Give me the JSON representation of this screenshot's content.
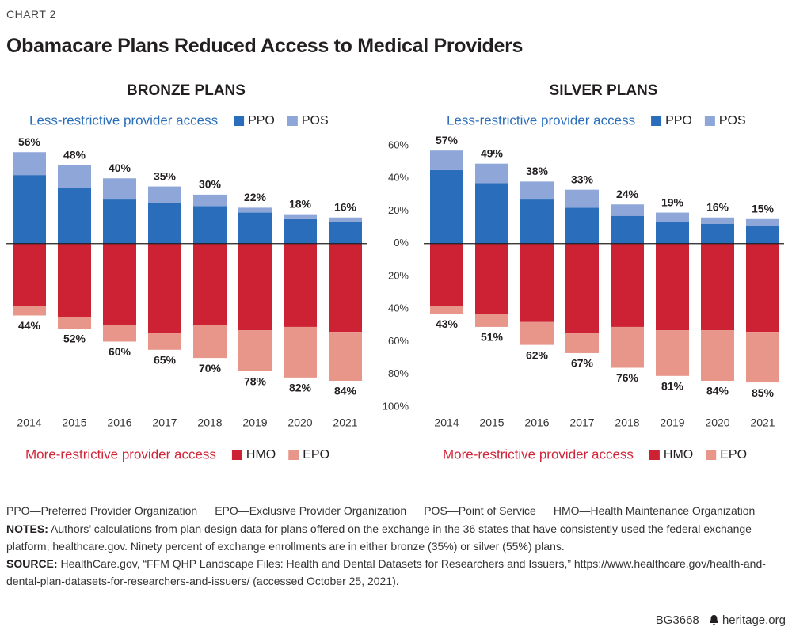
{
  "header": {
    "kicker": "CHART 2",
    "title": "Obamacare Plans Reduced Access to Medical Providers"
  },
  "chart_data": [
    {
      "type": "bar",
      "title": "BRONZE PLANS",
      "categories": [
        "2014",
        "2015",
        "2016",
        "2017",
        "2018",
        "2019",
        "2020",
        "2021"
      ],
      "ylim": [
        -100,
        60
      ],
      "upper": {
        "label": "Less-restrictive provider access",
        "series": [
          {
            "name": "PPO",
            "color": "#2a6ebb",
            "values": [
              42,
              34,
              27,
              25,
              23,
              19,
              15,
              13
            ]
          },
          {
            "name": "POS",
            "color": "#8fa6d8",
            "values": [
              14,
              14,
              13,
              10,
              7,
              3,
              3,
              3
            ]
          }
        ],
        "totals": [
          56,
          48,
          40,
          35,
          30,
          22,
          18,
          16
        ],
        "value_labels": [
          "56%",
          "48%",
          "40%",
          "35%",
          "30%",
          "22%",
          "18%",
          "16%"
        ]
      },
      "lower": {
        "label": "More-restrictive provider access",
        "series": [
          {
            "name": "HMO",
            "color": "#cc2233",
            "values": [
              38,
              45,
              50,
              55,
              50,
              53,
              51,
              54
            ]
          },
          {
            "name": "EPO",
            "color": "#e8968a",
            "values": [
              6,
              7,
              10,
              10,
              20,
              25,
              31,
              30
            ]
          }
        ],
        "totals": [
          44,
          52,
          60,
          65,
          70,
          78,
          82,
          84
        ],
        "value_labels": [
          "44%",
          "52%",
          "60%",
          "65%",
          "70%",
          "78%",
          "82%",
          "84%"
        ]
      }
    },
    {
      "type": "bar",
      "title": "SILVER PLANS",
      "categories": [
        "2014",
        "2015",
        "2016",
        "2017",
        "2018",
        "2019",
        "2020",
        "2021"
      ],
      "ylim": [
        -100,
        60
      ],
      "yticks": [
        {
          "value": 60,
          "label": "60%"
        },
        {
          "value": 40,
          "label": "40%"
        },
        {
          "value": 20,
          "label": "20%"
        },
        {
          "value": 0,
          "label": "0%"
        },
        {
          "value": -20,
          "label": "20%"
        },
        {
          "value": -40,
          "label": "40%"
        },
        {
          "value": -60,
          "label": "60%"
        },
        {
          "value": -80,
          "label": "80%"
        },
        {
          "value": -100,
          "label": "100%"
        }
      ],
      "upper": {
        "label": "Less-restrictive provider access",
        "series": [
          {
            "name": "PPO",
            "color": "#2a6ebb",
            "values": [
              45,
              37,
              27,
              22,
              17,
              13,
              12,
              11
            ]
          },
          {
            "name": "POS",
            "color": "#8fa6d8",
            "values": [
              12,
              12,
              11,
              11,
              7,
              6,
              4,
              4
            ]
          }
        ],
        "totals": [
          57,
          49,
          38,
          33,
          24,
          19,
          16,
          15
        ],
        "value_labels": [
          "57%",
          "49%",
          "38%",
          "33%",
          "24%",
          "19%",
          "16%",
          "15%"
        ]
      },
      "lower": {
        "label": "More-restrictive provider access",
        "series": [
          {
            "name": "HMO",
            "color": "#cc2233",
            "values": [
              38,
              43,
              48,
              55,
              51,
              53,
              53,
              54
            ]
          },
          {
            "name": "EPO",
            "color": "#e8968a",
            "values": [
              5,
              8,
              14,
              12,
              25,
              28,
              31,
              31
            ]
          }
        ],
        "totals": [
          43,
          51,
          62,
          67,
          76,
          81,
          84,
          85
        ],
        "value_labels": [
          "43%",
          "51%",
          "62%",
          "67%",
          "76%",
          "81%",
          "84%",
          "85%"
        ]
      }
    }
  ],
  "footer": {
    "abbreviations": [
      "PPO—Preferred Provider Organization",
      "EPO—Exclusive Provider Organization",
      "POS—Point of Service",
      "HMO—Health Maintenance Organization"
    ],
    "notes_label": "NOTES:",
    "notes": "Authors’ calculations from plan design data for plans offered on the exchange in the 36 states that have consistently used the federal exchange platform, healthcare.gov. Ninety percent of exchange enrollments are in either bronze (35%) or silver (55%) plans.",
    "source_label": "SOURCE:",
    "source": "HealthCare.gov, “FFM QHP Landscape Files: Health and Dental Datasets for Researchers and Issuers,” https://www.healthcare.gov/health-and-dental-plan-datasets-for-researchers-and-issuers/ (accessed October 25, 2021).",
    "id": "BG3668",
    "site": "heritage.org"
  }
}
